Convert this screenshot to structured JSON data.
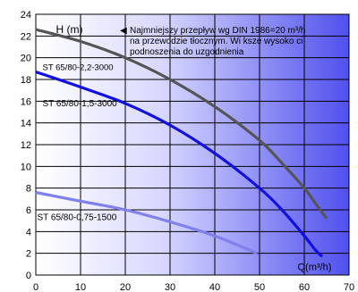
{
  "chart_data": {
    "type": "line",
    "title": "",
    "xlabel": "Q(m³/h)",
    "ylabel": "H (m)",
    "xlim": [
      0,
      70
    ],
    "ylim": [
      0,
      24
    ],
    "x_ticks": [
      0,
      10,
      20,
      30,
      40,
      50,
      60,
      70
    ],
    "x_tick_labels": [
      "0",
      "10",
      "20",
      "30",
      "40",
      "50",
      "60",
      "70"
    ],
    "y_ticks": [
      0,
      2,
      4,
      6,
      8,
      10,
      12,
      14,
      16,
      18,
      20,
      22,
      24
    ],
    "y_tick_labels": [
      "0",
      "2",
      "4",
      "6",
      "8",
      "10",
      "12",
      "14",
      "16",
      "18",
      "20",
      "22",
      "24"
    ],
    "grid": true,
    "annotation": {
      "marker": "◀",
      "lines": [
        "Najmniejszy przepływ wg DIN 1986=20 m³/h",
        "na przewodzie tłocznym. Wi  ksze wysoko  ci",
        "podnoszenia do uzgodnienia"
      ]
    },
    "series": [
      {
        "name": "ST 65/80-2,2-3000",
        "color": "#555555",
        "x": [
          0,
          10,
          20,
          30,
          40,
          50,
          55,
          60,
          63,
          65
        ],
        "y": [
          22.6,
          21.5,
          20.0,
          18.0,
          15.5,
          12.4,
          10.3,
          8.0,
          6.3,
          5.2
        ]
      },
      {
        "name": "ST 65/80-1,5-3000",
        "color": "#1010e0",
        "x": [
          0,
          10,
          20,
          30,
          40,
          50,
          55,
          60,
          62.5,
          64
        ],
        "y": [
          18.7,
          17.3,
          15.8,
          13.8,
          11.2,
          8.0,
          6.0,
          3.6,
          2.3,
          1.7
        ]
      },
      {
        "name": "ST 65/80-0,75-1500",
        "color": "#7f7fee",
        "x": [
          0,
          10,
          20,
          30,
          40,
          49.5
        ],
        "y": [
          7.6,
          6.8,
          6.0,
          4.9,
          3.6,
          2.0
        ]
      }
    ],
    "series_label_values": [
      {
        "text": "ST 65/80-2,2-3000",
        "x": 1.5,
        "y": 19.1
      },
      {
        "text": "ST 65/80-1,5-3000",
        "x": 1.5,
        "y": 15.8
      },
      {
        "text": "ST 65/80-0,75-1500",
        "x": 0.3,
        "y": 5.3
      }
    ],
    "ylabel_values": {
      "x": 4.5,
      "y": 22.6
    },
    "xlabel_values": {
      "x": 58.5,
      "y": 0.8
    },
    "annotation_values": {
      "x": 21,
      "y": 22.6
    }
  }
}
